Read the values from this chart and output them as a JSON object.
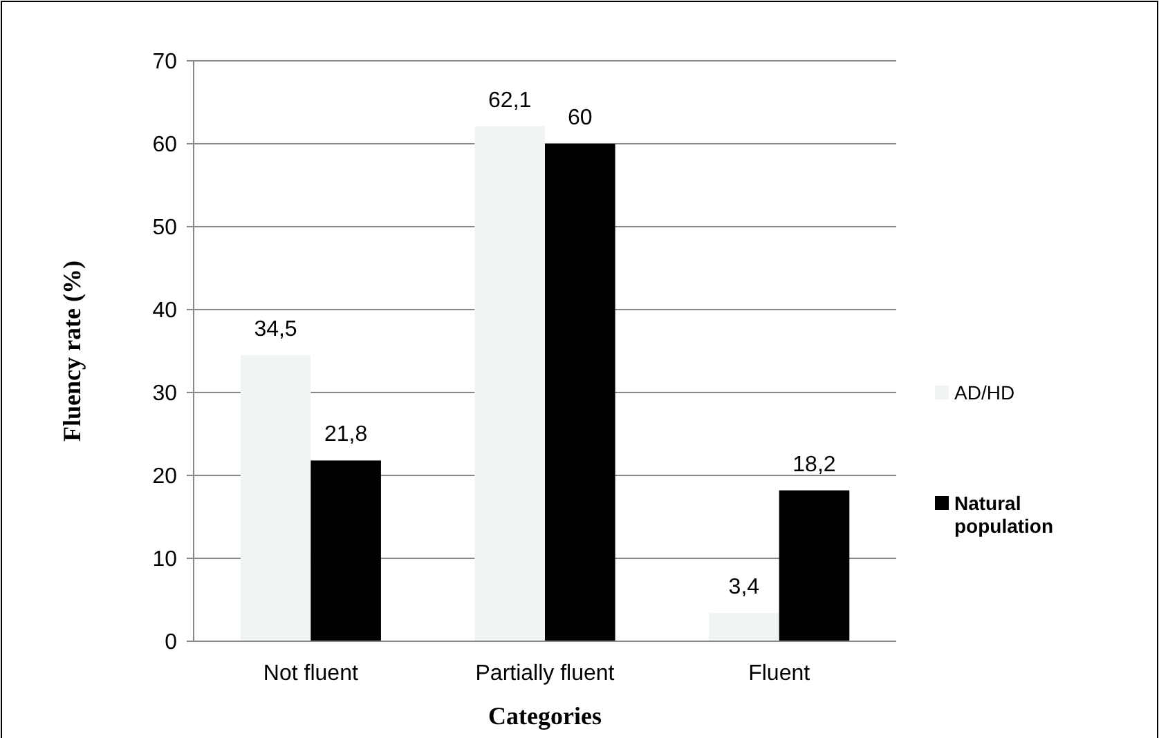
{
  "chart_data": {
    "type": "bar",
    "xlabel": "Categories",
    "ylabel": "Fluency rate (%)",
    "categories": [
      "Not fluent",
      "Partially fluent",
      "Fluent"
    ],
    "series": [
      {
        "name": "AD/HD",
        "color": "#f0f4f4",
        "values": [
          34.5,
          62.1,
          3.4
        ],
        "value_labels": [
          "34,5",
          "62,1",
          "3,4"
        ]
      },
      {
        "name": "Natural population",
        "color": "#000000",
        "values": [
          21.8,
          60,
          18.2
        ],
        "value_labels": [
          "21,8",
          "60",
          "18,2"
        ]
      }
    ],
    "ylim": [
      0,
      70
    ],
    "yticks": [
      0,
      10,
      20,
      30,
      40,
      50,
      60,
      70
    ],
    "grid": "y",
    "legend": "right"
  }
}
